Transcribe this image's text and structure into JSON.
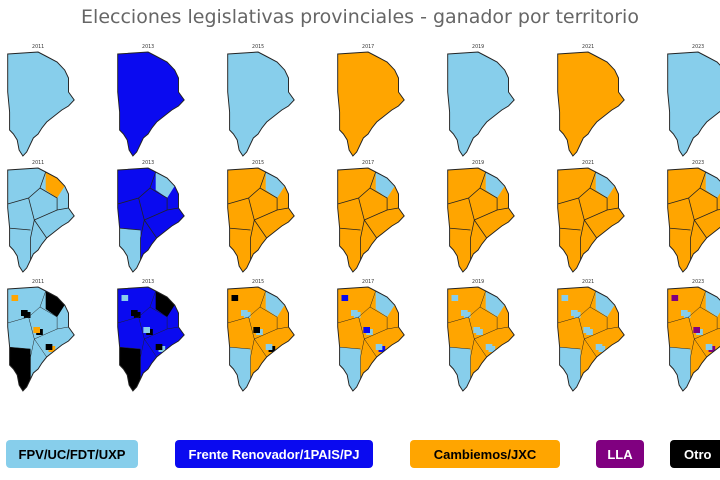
{
  "title": "Elecciones legislativas provinciales - ganador por territorio",
  "years": [
    "2011",
    "2013",
    "2015",
    "2017",
    "2019",
    "2021",
    "2023"
  ],
  "parties": {
    "fpv": {
      "label": "FPV/UC/FDT/UXP",
      "color": "#87ceeb",
      "text_color": "#000000"
    },
    "fr": {
      "label": "Frente Renovador/1PAIS/PJ",
      "color": "#0a0af0",
      "text_color": "#ffffff"
    },
    "cam": {
      "label": "Cambiemos/JXC",
      "color": "#ffa500",
      "text_color": "#000000"
    },
    "lla": {
      "label": "LLA",
      "color": "#800080",
      "text_color": "#ffffff"
    },
    "otro": {
      "label": "Otro",
      "color": "#000000",
      "text_color": "#ffffff"
    }
  },
  "rows": [
    {
      "level": "provincia",
      "winners": [
        "fpv",
        "fr",
        "fpv",
        "cam",
        "fpv",
        "cam",
        "fpv"
      ]
    },
    {
      "level": "seccion",
      "winners": [
        "fpv",
        "fr",
        "cam",
        "cam",
        "cam",
        "cam",
        "cam"
      ],
      "minority": [
        "cam",
        "fpv",
        "fpv",
        "fpv",
        "fpv",
        "fpv",
        "fpv"
      ]
    },
    {
      "level": "municipio",
      "winners": [
        "fpv",
        "fr",
        "cam",
        "cam",
        "cam",
        "cam",
        "cam"
      ],
      "minority": [
        "otro",
        "otro",
        "fpv",
        "fpv",
        "fpv",
        "fpv",
        "fpv"
      ],
      "extra": [
        "cam",
        "fpv",
        "otro",
        "fr",
        "fpv",
        "fpv",
        "lla"
      ]
    }
  ]
}
